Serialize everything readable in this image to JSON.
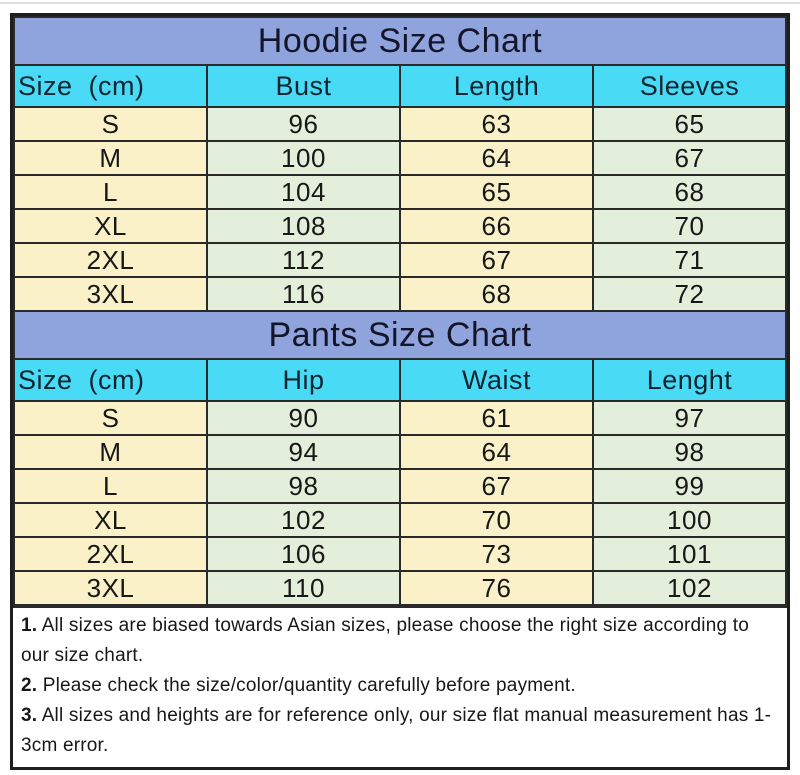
{
  "colors": {
    "title_bg": "#8FA3DC",
    "header_bg": "#49DAF6",
    "column_cream": "#FAF1C8",
    "column_green": "#E4EFDB",
    "border": "#2a2a2a",
    "text": "#171717"
  },
  "chart_data": [
    {
      "type": "table",
      "title": "Hoodie Size Chart",
      "headers": [
        "Size  (cm)",
        "Bust",
        "Length",
        "Sleeves"
      ],
      "rows": [
        [
          "S",
          "96",
          "63",
          "65"
        ],
        [
          "M",
          "100",
          "64",
          "67"
        ],
        [
          "L",
          "104",
          "65",
          "68"
        ],
        [
          "XL",
          "108",
          "66",
          "70"
        ],
        [
          "2XL",
          "112",
          "67",
          "71"
        ],
        [
          "3XL",
          "116",
          "68",
          "72"
        ]
      ]
    },
    {
      "type": "table",
      "title": "Pants Size Chart",
      "headers": [
        "Size  (cm)",
        "Hip",
        "Waist",
        "Lenght"
      ],
      "rows": [
        [
          "S",
          "90",
          "61",
          "97"
        ],
        [
          "M",
          "94",
          "64",
          "98"
        ],
        [
          "L",
          "98",
          "67",
          "99"
        ],
        [
          "XL",
          "102",
          "70",
          "100"
        ],
        [
          "2XL",
          "106",
          "73",
          "101"
        ],
        [
          "3XL",
          "110",
          "76",
          "102"
        ]
      ]
    }
  ],
  "notes": [
    {
      "num": "1.",
      "text": "All sizes are biased towards Asian sizes, please choose the right size according to our size chart."
    },
    {
      "num": "2.",
      "text": "Please check the size/color/quantity carefully before payment."
    },
    {
      "num": "3.",
      "text": "All sizes and heights are for reference only, our size flat manual measurement has 1-3cm error."
    }
  ]
}
